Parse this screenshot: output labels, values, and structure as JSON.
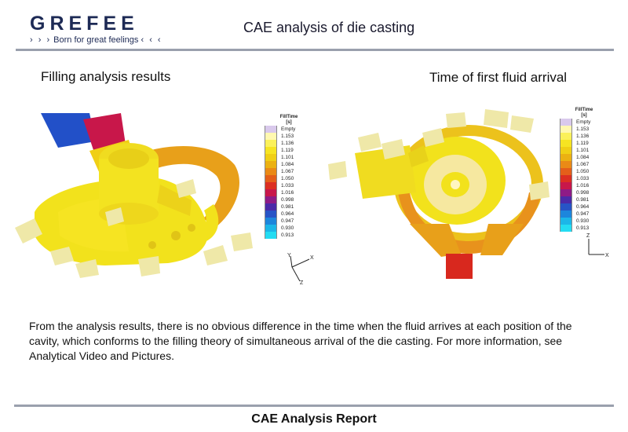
{
  "header": {
    "logo_word": "GREFEE",
    "logo_chevrons_left": "› › ›",
    "logo_tagline": "Born for great feelings",
    "logo_chevrons_right": "‹ ‹ ‹",
    "title": "CAE analysis of die casting"
  },
  "sections": {
    "left_title": "Filling analysis results",
    "right_title": "Time of first fluid arrival"
  },
  "legend": {
    "title_line1": "FillTime",
    "title_line2": "[s]",
    "empty_label": "Empty",
    "values": [
      "1.153",
      "1.136",
      "1.119",
      "1.101",
      "1.084",
      "1.067",
      "1.050",
      "1.033",
      "1.016",
      "0.998",
      "0.981",
      "0.964",
      "0.947",
      "0.930",
      "0.913"
    ],
    "colors": [
      "#fff8b0",
      "#fbf15a",
      "#f6e422",
      "#f0cf15",
      "#ebb112",
      "#ea8a16",
      "#e45f1a",
      "#dc2f22",
      "#c8174a",
      "#8e1b86",
      "#4b2aa8",
      "#2754c6",
      "#1d86dc",
      "#1cb6e8",
      "#24dcf2"
    ],
    "empty_color": "#d9c9ec"
  },
  "axes_left": {
    "y": "Y",
    "x": "X",
    "z": "Z"
  },
  "axes_right": {
    "z": "Z",
    "x": "X"
  },
  "body_text": "From the analysis results, there is no obvious difference in the time when the fluid arrives at each position of the cavity, which conforms to the filling theory of simultaneous arrival of the die casting. For more information, see Analytical Video and Pictures.",
  "footer": {
    "title": "CAE Analysis Report"
  },
  "colors": {
    "brand_navy": "#1d2a55",
    "casting_yellow": "#f2e21c",
    "casting_orange": "#e8921c",
    "casting_red": "#d8281e",
    "casting_blue": "#2250c8",
    "rule_gray": "#9aa0ad"
  }
}
